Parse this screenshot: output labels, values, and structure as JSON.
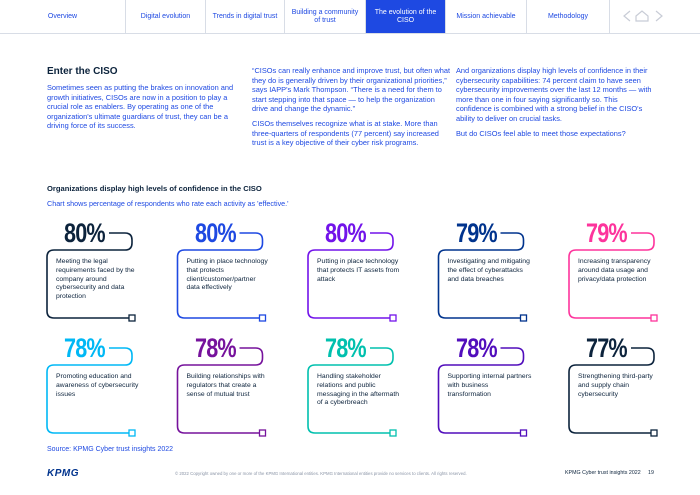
{
  "nav": {
    "tabs": [
      "Overview",
      "Digital evolution",
      "Trends in digital trust",
      "Building a community of trust",
      "The evolution of the CISO",
      "Mission achievable",
      "Methodology"
    ]
  },
  "intro": {
    "heading": "Enter the CISO",
    "columns": [
      [
        "Sometimes seen as putting the brakes on innovation and growth initiatives, CISOs are now in a position to play a crucial role as enablers. By operating as one of the organization's ultimate guardians of trust, they can be a driving force of its success."
      ],
      [
        "“CISOs can really enhance and improve trust, but often what they do is generally driven by their organizational priorities,” says IAPP's Mark Thompson. “There is a need for them to start stepping into that space — to help the organization drive and change the dynamic.”",
        "CISOs themselves recognize what is at stake. More than three-quarters of respondents (77 percent) say increased trust is a key objective of their cyber risk programs."
      ],
      [
        "And organizations display high levels of confidence in their cybersecurity capabilities: 74 percent claim to have seen cybersecurity improvements over the last 12 months — with more than one in four saying significantly so. This confidence is combined with a strong belief in the CISO's ability to deliver on crucial tasks.",
        "But do CISOs feel able to meet those expectations?"
      ]
    ]
  },
  "infographic": {
    "title": "Organizations display high levels of confidence in the CISO",
    "subtitle": "Chart shows percentage of respondents who rate each activity as 'effective.'",
    "cards": [
      {
        "value": "80%",
        "label": "Meeting the legal requirements faced by the company around cybersecurity and data protection",
        "color": "#0c233c"
      },
      {
        "value": "80%",
        "label": "Putting in place technology that protects client/customer/partner data effectively",
        "color": "#1e49e2"
      },
      {
        "value": "80%",
        "label": "Putting in place technology that protects IT assets from attack",
        "color": "#7213ea"
      },
      {
        "value": "79%",
        "label": "Investigating and mitigating the effect of cyberattacks and data breaches",
        "color": "#00338d"
      },
      {
        "value": "79%",
        "label": "Increasing transparency around data usage and privacy/data protection",
        "color": "#fd349c"
      },
      {
        "value": "78%",
        "label": "Promoting education and awareness of cybersecurity issues",
        "color": "#00b8f5"
      },
      {
        "value": "78%",
        "label": "Building relationships with regulators that create a sense of mutual trust",
        "color": "#76129c"
      },
      {
        "value": "78%",
        "label": "Handling stakeholder relations and public messaging in the aftermath of a cyberbreach",
        "color": "#00c0ae"
      },
      {
        "value": "78%",
        "label": "Supporting internal partners with business transformation",
        "color": "#510dbc"
      },
      {
        "value": "77%",
        "label": "Strengthening third-party and supply chain cybersecurity",
        "color": "#0c233c"
      }
    ],
    "source": "Source: KPMG Cyber trust insights 2022"
  },
  "footer": {
    "logo": "KPMG",
    "copyright": "© 2022 Copyright owned by one or more of the KPMG International entities. KPMG International entities provide no services to clients. All rights reserved.",
    "publication": "KPMG Cyber trust insights 2022",
    "page": "19"
  }
}
